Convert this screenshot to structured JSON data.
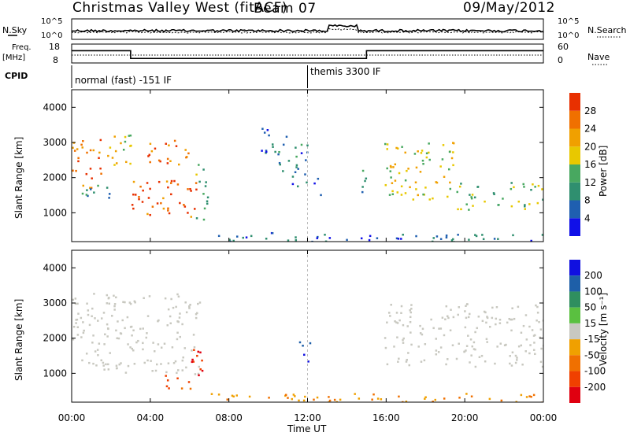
{
  "header": {
    "station": "Christmas Valley West (fitACF)",
    "beam": "Beam 07",
    "date": "09/May/2012"
  },
  "sky_panel": {
    "left_label": "N.Sky",
    "left_ticks": [
      "10^5",
      "10^0"
    ],
    "right_label": "N.Search",
    "right_ticks": [
      "10^5",
      "10^0"
    ]
  },
  "freq_panel": {
    "left_label_1": "Freq.",
    "left_label_2": "[MHz]",
    "left_ticks": [
      "18",
      "8"
    ],
    "right_label": "Nave",
    "right_ticks": [
      "60",
      "0"
    ]
  },
  "cpid": {
    "label": "CPID",
    "segments": [
      {
        "text": "normal (fast) -151 IF",
        "start_hour": 0
      },
      {
        "text": "themis 3300 IF",
        "start_hour": 12
      }
    ]
  },
  "axes": {
    "xlabel": "Time UT",
    "xticks": [
      "00:00",
      "04:00",
      "08:00",
      "12:00",
      "16:00",
      "20:00",
      "00:00"
    ],
    "xlim_hours": [
      0,
      24
    ],
    "ylabel": "Slant Range [km]",
    "yticks": [
      "1000",
      "2000",
      "3000",
      "4000"
    ],
    "ylim_km": [
      180,
      4500
    ]
  },
  "power_colorbar": {
    "label": "Power [dB]",
    "ticks": [
      "4",
      "8",
      "12",
      "16",
      "20",
      "24",
      "28"
    ],
    "colors": [
      "#1010e8",
      "#1f5fb0",
      "#2f8f6f",
      "#48a860",
      "#e8c800",
      "#f0a000",
      "#f07000",
      "#e83000"
    ]
  },
  "velocity_colorbar": {
    "label": "Velocity [m s⁻¹]",
    "ticks": [
      "200",
      "100",
      "50",
      "15",
      "-15",
      "-50",
      "-100",
      "-200"
    ],
    "colors": [
      "#1010e0",
      "#1e5fa8",
      "#2f8f5f",
      "#5ac040",
      "#c8c8c0",
      "#f0a000",
      "#f07000",
      "#f04000",
      "#e00010"
    ]
  },
  "chart_data": {
    "type": "heatmap",
    "title": "Christmas Valley West (fitACF) Beam 07 09/May/2012",
    "xlabel": "Time UT",
    "ylabel": "Slant Range [km]",
    "xlim": [
      0,
      24
    ],
    "ylim": [
      180,
      4500
    ],
    "grid": false,
    "frequency_mhz": [
      {
        "start_hour": 0,
        "end_hour": 3,
        "value": 14.5
      },
      {
        "start_hour": 3,
        "end_hour": 15,
        "value": 10.4
      },
      {
        "start_hour": 15,
        "end_hour": 24,
        "value": 14.5
      }
    ],
    "power_scatter_blobs": [
      {
        "t0": 0.0,
        "t1": 1.6,
        "r0": 1700,
        "r1": 3100,
        "db": 26
      },
      {
        "t0": 0.0,
        "t1": 2.6,
        "r0": 1450,
        "r1": 1800,
        "db": 10
      },
      {
        "t0": 1.5,
        "t1": 3.0,
        "r0": 2300,
        "r1": 3300,
        "db": 18
      },
      {
        "t0": 3.0,
        "t1": 6.4,
        "r0": 900,
        "r1": 2000,
        "db": 29
      },
      {
        "t0": 3.8,
        "t1": 6.0,
        "r0": 2400,
        "r1": 3200,
        "db": 27
      },
      {
        "t0": 6.2,
        "t1": 6.9,
        "r0": 800,
        "r1": 2500,
        "db": 12
      },
      {
        "t0": 9.6,
        "t1": 11.0,
        "r0": 2700,
        "r1": 3500,
        "db": 6
      },
      {
        "t0": 10.4,
        "t1": 12.0,
        "r0": 1700,
        "r1": 3000,
        "db": 8
      },
      {
        "t0": 12.3,
        "t1": 12.8,
        "r0": 1500,
        "r1": 2100,
        "db": 8
      },
      {
        "t0": 14.5,
        "t1": 15.0,
        "r0": 1400,
        "r1": 2300,
        "db": 10
      },
      {
        "t0": 15.9,
        "t1": 19.5,
        "r0": 1400,
        "r1": 3100,
        "db": 18
      },
      {
        "t0": 19.5,
        "t1": 24.0,
        "r0": 1100,
        "r1": 1900,
        "db": 14
      },
      {
        "t0": 6.8,
        "t1": 24.0,
        "r0": 180,
        "r1": 450,
        "db": 6
      }
    ],
    "velocity_scatter_blobs": [
      {
        "t0": 0.0,
        "t1": 6.5,
        "r0": 1000,
        "r1": 3300,
        "v": 0
      },
      {
        "t0": 6.0,
        "t1": 6.8,
        "r0": 700,
        "r1": 1900,
        "v": -200
      },
      {
        "t0": 4.6,
        "t1": 6.2,
        "r0": 550,
        "r1": 1000,
        "v": -100
      },
      {
        "t0": 11.5,
        "t1": 12.1,
        "r0": 1300,
        "r1": 2000,
        "v": 200
      },
      {
        "t0": 15.9,
        "t1": 24.0,
        "r0": 1200,
        "r1": 3000,
        "v": 0
      },
      {
        "t0": 6.8,
        "t1": 24.0,
        "r0": 180,
        "r1": 450,
        "v": -50
      }
    ]
  }
}
